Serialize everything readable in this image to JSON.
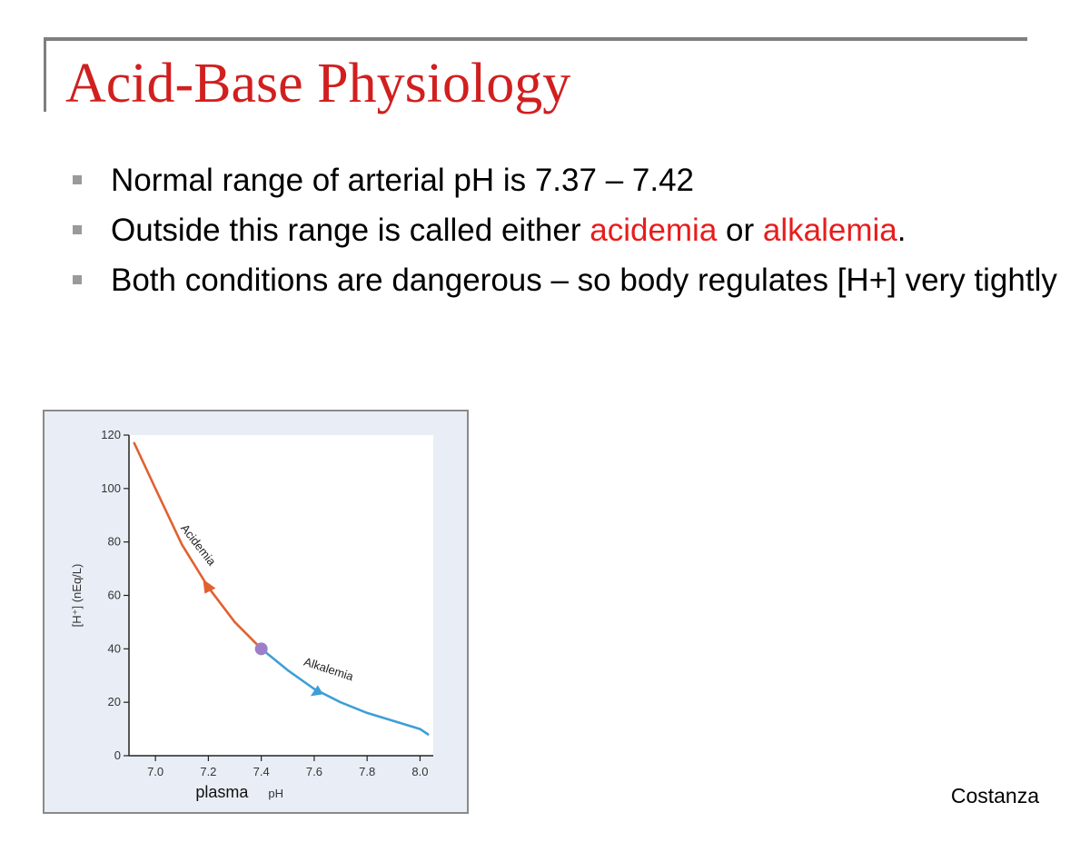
{
  "slide": {
    "title": "Acid-Base Physiology",
    "bullets": [
      {
        "text": "Normal range of arterial pH is 7.37 – 7.42"
      },
      {
        "pre": "Outside this range is called either ",
        "term1": "acidemia",
        "mid": " or ",
        "term2": "alkalemia",
        "post": "."
      },
      {
        "text": "Both conditions are dangerous – so body regulates [H+] very tightly"
      }
    ],
    "credit": "Costanza"
  },
  "colors": {
    "title": "#d11f1f",
    "highlight": "#e81c1c",
    "acidemia_curve": "#e0622f",
    "alkalemia_curve": "#3d9fd6",
    "normal_point": "#9b7fc8",
    "rule": "#7f7f7f"
  },
  "chart_data": {
    "type": "line",
    "xlabel_main": "plasma",
    "xlabel_unit": "pH",
    "ylabel": "[H⁺] (nEq/L)",
    "xlim": [
      6.9,
      8.05
    ],
    "ylim": [
      0,
      120
    ],
    "x_ticks": [
      "7.0",
      "7.2",
      "7.4",
      "7.6",
      "7.8",
      "8.0"
    ],
    "y_ticks": [
      "0",
      "20",
      "40",
      "60",
      "80",
      "100",
      "120"
    ],
    "series": [
      {
        "name": "Acidemia",
        "color": "#e0622f",
        "x": [
          6.92,
          7.0,
          7.1,
          7.2,
          7.3,
          7.4
        ],
        "y": [
          117,
          100,
          79,
          63,
          50,
          40
        ]
      },
      {
        "name": "Alkalemia",
        "color": "#3d9fd6",
        "x": [
          7.4,
          7.5,
          7.6,
          7.7,
          7.8,
          7.9,
          8.0,
          8.03
        ],
        "y": [
          40,
          32,
          25,
          20,
          16,
          13,
          10,
          8
        ]
      }
    ],
    "normal_point": {
      "x": 7.4,
      "y": 40
    },
    "annotations": [
      {
        "text": "Acidemia"
      },
      {
        "text": "Alkalemia"
      }
    ]
  }
}
